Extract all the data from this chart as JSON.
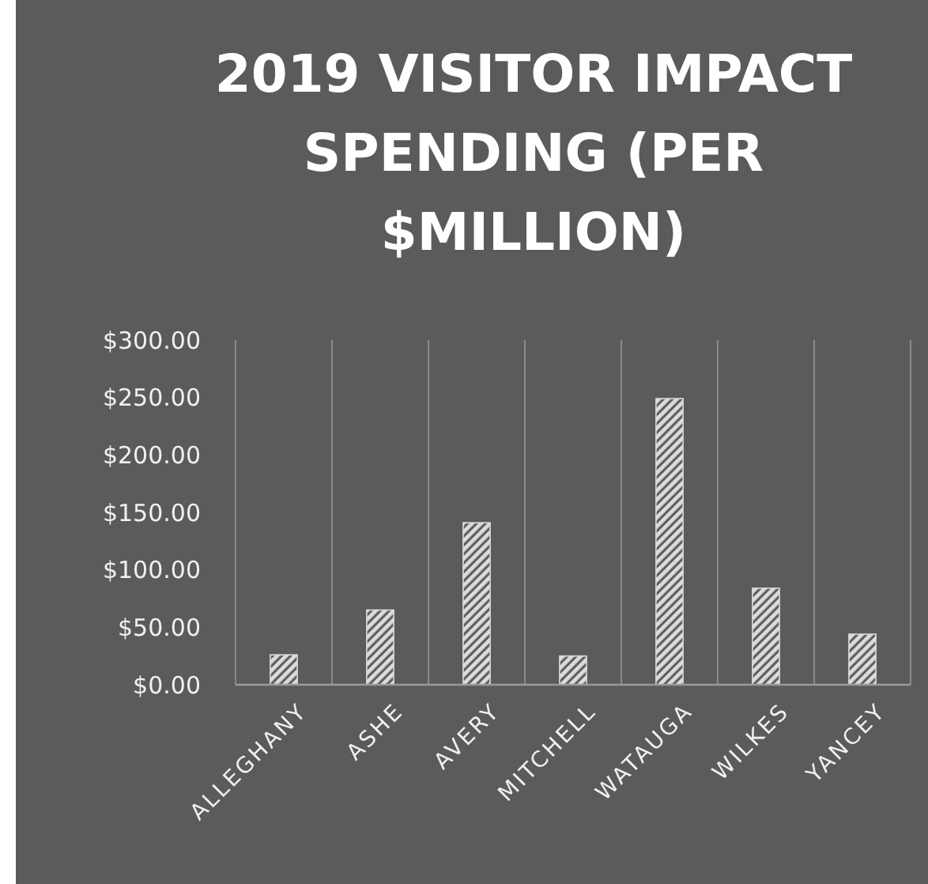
{
  "chart_data": {
    "type": "bar",
    "title": "2019 VISITOR IMPACT SPENDING (PER $MILLION)",
    "categories": [
      "ALLEGHANY",
      "ASHE",
      "AVERY",
      "MITCHELL",
      "WATAUGA",
      "WILKES",
      "YANCEY"
    ],
    "values": [
      26,
      65,
      141,
      25,
      249,
      84,
      44
    ],
    "color": "#dcdcdc",
    "ylim": [
      0,
      300
    ],
    "yticks": [
      {
        "value": 0,
        "label": "$0.00"
      },
      {
        "value": 50,
        "label": "$50.00"
      },
      {
        "value": 100,
        "label": "$100.00"
      },
      {
        "value": 150,
        "label": "$150.00"
      },
      {
        "value": 200,
        "label": "$200.00"
      },
      {
        "value": 250,
        "label": "$250.00"
      },
      {
        "value": 300,
        "label": "$300.00"
      }
    ],
    "grid": "x"
  }
}
